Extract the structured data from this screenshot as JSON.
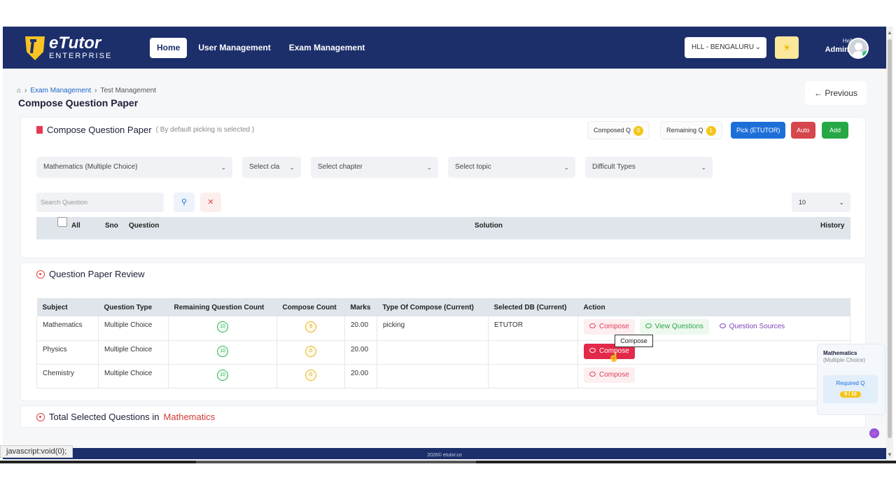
{
  "header": {
    "logo_main": "eTutor",
    "logo_sub": "ENTERPRISE",
    "nav": [
      {
        "label": "Home"
      },
      {
        "label": "User Management"
      },
      {
        "label": "Exam Management"
      }
    ],
    "branch": "HLL - BENGALURU",
    "greeting": "Hello",
    "user": "Admin..."
  },
  "breadcrumb": {
    "link": "Exam Management",
    "current": "Test Management"
  },
  "page_title": "Compose Question Paper",
  "previous_label": "Previous",
  "compose_card": {
    "title": "Compose Question Paper",
    "subtitle": "( By default picking is selected )",
    "composed_label": "Composed Q",
    "composed_count": "9",
    "remaining_label": "Remaining Q",
    "remaining_count": "1",
    "pick_label": "Pick (ETUTOR)",
    "auto_label": "Auto",
    "add_label": "Add",
    "filters": {
      "subject": "Mathematics (Multiple Choice)",
      "class": "Select cla",
      "chapter": "Select chapter",
      "topic": "Select topic",
      "difficulty": "Difficult Types"
    },
    "search_placeholder": "Search Question",
    "page_size": "10",
    "columns": {
      "all": "All",
      "sno": "Sno",
      "question": "Question",
      "solution": "Solution",
      "history": "History"
    }
  },
  "review_card": {
    "title": "Question Paper Review",
    "headers": [
      "Subject",
      "Question Type",
      "Remaining Question Count",
      "Compose Count",
      "Marks",
      "Type Of Compose (Current)",
      "Selected DB (Current)",
      "Action"
    ],
    "rows": [
      {
        "subject": "Mathematics",
        "type": "Multiple Choice",
        "remaining": "10",
        "compose": "9",
        "marks": "20.00",
        "compose_type": "picking",
        "db": "ETUTOR"
      },
      {
        "subject": "Physics",
        "type": "Multiple Choice",
        "remaining": "10",
        "compose": "0",
        "marks": "20.00",
        "compose_type": "",
        "db": ""
      },
      {
        "subject": "Chemistry",
        "type": "Multiple Choice",
        "remaining": "10",
        "compose": "0",
        "marks": "20.00",
        "compose_type": "",
        "db": ""
      }
    ],
    "actions": {
      "compose": "Compose",
      "view": "View Questions",
      "sources": "Question Sources"
    },
    "tooltip": "Compose"
  },
  "side_panel": {
    "subject": "Mathematics",
    "type": "(Multiple Choice)",
    "required_label": "Required Q",
    "required_value": "9 / 10"
  },
  "total_card": {
    "prefix": "Total Selected Questions in",
    "subject": "Mathematics"
  },
  "footer": "2026© etutor.co",
  "status_bar": "javascript:void(0);",
  "colors": {
    "header": "#1c2f6b",
    "primary": "#1d6fd8",
    "danger": "#e3294a",
    "success": "#25a845",
    "badge": "#f5c518"
  }
}
